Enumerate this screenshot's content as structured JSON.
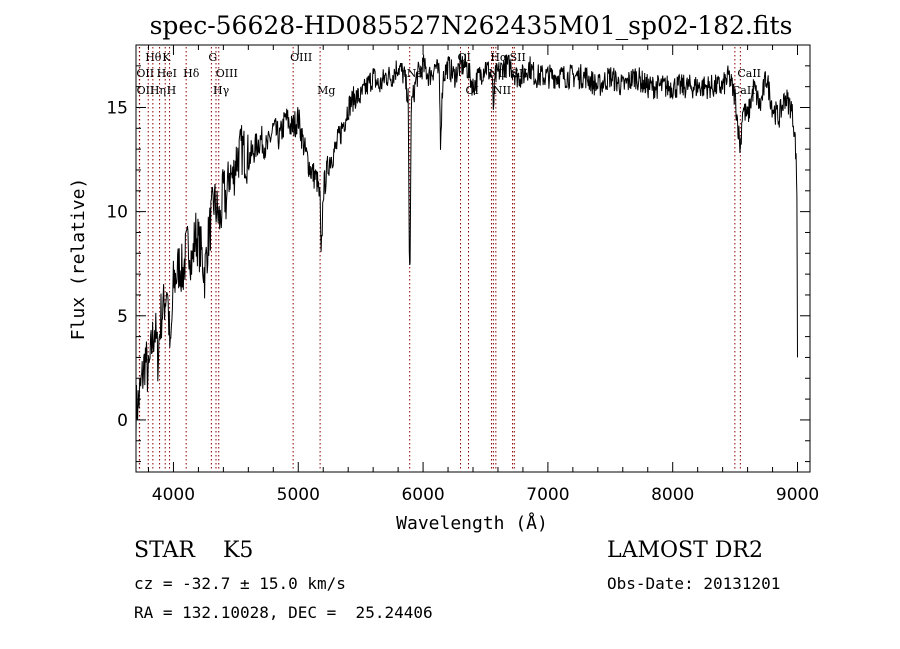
{
  "chart_data": {
    "type": "line",
    "title": "spec-56628-HD085527N262435M01_sp02-182.fits",
    "xlabel": "Wavelength (Å)",
    "ylabel": "Flux (relative)",
    "xlim": [
      3700,
      9100
    ],
    "ylim": [
      -2.5,
      18.0
    ],
    "x_ticks": [
      4000,
      5000,
      6000,
      7000,
      8000,
      9000
    ],
    "y_ticks": [
      0,
      5,
      10,
      15
    ],
    "grid": false,
    "series": [
      {
        "color": "#000000",
        "x": [
          3700,
          3725,
          3750,
          3775,
          3800,
          3825,
          3850,
          3875,
          3900,
          3925,
          3950,
          3975,
          4000,
          4025,
          4050,
          4075,
          4100,
          4125,
          4150,
          4175,
          4200,
          4225,
          4250,
          4275,
          4300,
          4325,
          4350,
          4375,
          4400,
          4425,
          4450,
          4475,
          4500,
          4550,
          4600,
          4650,
          4700,
          4750,
          4800,
          4850,
          4900,
          4950,
          5000,
          5050,
          5100,
          5150,
          5175,
          5183,
          5200,
          5250,
          5300,
          5350,
          5400,
          5450,
          5500,
          5550,
          5600,
          5650,
          5700,
          5750,
          5800,
          5850,
          5880,
          5890,
          5896,
          5905,
          5950,
          6000,
          6050,
          6100,
          6130,
          6140,
          6160,
          6200,
          6250,
          6300,
          6350,
          6400,
          6450,
          6500,
          6550,
          6563,
          6580,
          6650,
          6700,
          6750,
          6800,
          6850,
          6900,
          6950,
          7000,
          7100,
          7200,
          7300,
          7400,
          7500,
          7600,
          7700,
          7800,
          7900,
          8000,
          8100,
          8200,
          8300,
          8400,
          8450,
          8500,
          8542,
          8560,
          8600,
          8650,
          8700,
          8750,
          8800,
          8850,
          8900,
          8950,
          8975,
          8985,
          8995,
          9000
        ],
        "values": [
          0.5,
          1.0,
          2.0,
          3.0,
          2.0,
          3.5,
          4.5,
          3.0,
          5.0,
          5.5,
          6.5,
          3.0,
          6.5,
          7.0,
          7.5,
          7.0,
          8.0,
          8.5,
          7.5,
          9.0,
          8.5,
          8.0,
          7.0,
          8.5,
          9.5,
          10.5,
          10.0,
          9.5,
          11.0,
          10.5,
          12.0,
          11.5,
          12.5,
          13.0,
          12.5,
          13.0,
          13.5,
          13.0,
          14.0,
          13.5,
          14.5,
          14.0,
          14.5,
          13.0,
          12.0,
          11.5,
          10.5,
          7.5,
          11.0,
          12.5,
          13.0,
          14.0,
          15.0,
          15.5,
          15.5,
          16.0,
          16.5,
          16.0,
          16.5,
          16.5,
          17.0,
          16.5,
          15.5,
          8.0,
          7.5,
          15.0,
          16.5,
          17.0,
          16.5,
          17.0,
          16.5,
          13.5,
          16.5,
          17.0,
          16.5,
          17.0,
          17.0,
          16.0,
          16.5,
          17.0,
          16.5,
          15.0,
          16.5,
          17.0,
          17.0,
          16.5,
          16.5,
          17.0,
          16.5,
          16.5,
          16.5,
          16.5,
          16.5,
          16.5,
          16.0,
          16.5,
          16.0,
          16.5,
          16.0,
          16.0,
          16.0,
          16.0,
          16.0,
          16.0,
          16.0,
          16.5,
          15.5,
          13.0,
          15.0,
          14.5,
          16.0,
          15.0,
          16.5,
          15.0,
          14.5,
          15.5,
          15.0,
          14.0,
          13.0,
          11.0,
          3.0
        ]
      }
    ],
    "line_markers": [
      {
        "label": "Hθ",
        "wavelength": 3798,
        "row": 1
      },
      {
        "label": "K",
        "wavelength": 3934,
        "row": 1
      },
      {
        "label": "G",
        "wavelength": 4304,
        "row": 1
      },
      {
        "label": "OIII",
        "wavelength": 4959,
        "row": 1
      },
      {
        "label": "OI",
        "wavelength": 6300,
        "row": 1
      },
      {
        "label": "Hα",
        "wavelength": 6563,
        "row": 1
      },
      {
        "label": "SII",
        "wavelength": 6717,
        "row": 1
      },
      {
        "label": "OII",
        "wavelength": 3727,
        "row": 2
      },
      {
        "label": "HeI",
        "wavelength": 3889,
        "row": 2
      },
      {
        "label": "Hδ",
        "wavelength": 4102,
        "row": 2
      },
      {
        "label": "OIII",
        "wavelength": 4363,
        "row": 2
      },
      {
        "label": "Na",
        "wavelength": 5893,
        "row": 2
      },
      {
        "label": "NII",
        "wavelength": 6548,
        "row": 2
      },
      {
        "label": "SII",
        "wavelength": 6731,
        "row": 2
      },
      {
        "label": "CaII",
        "wavelength": 8542,
        "row": 2
      },
      {
        "label": "OII",
        "wavelength": 3729,
        "row": 3
      },
      {
        "label": "Hη",
        "wavelength": 3835,
        "row": 3
      },
      {
        "label": "H",
        "wavelength": 3969,
        "row": 3
      },
      {
        "label": "Hγ",
        "wavelength": 4341,
        "row": 3
      },
      {
        "label": "Mg",
        "wavelength": 5175,
        "row": 3
      },
      {
        "label": "OI",
        "wavelength": 6364,
        "row": 3
      },
      {
        "label": "NII",
        "wavelength": 6583,
        "row": 3
      },
      {
        "label": "CaII",
        "wavelength": 8498,
        "row": 3
      }
    ]
  },
  "info": {
    "object_class": "STAR    K5",
    "survey": "LAMOST DR2",
    "cz": "cz = -32.7 ± 15.0 km/s",
    "obs_date": "Obs-Date: 20131201",
    "radec": "RA = 132.10028, DEC =  25.24406"
  },
  "colors": {
    "spectrum": "#000000",
    "marker_lines": "#8b0000",
    "axes": "#000000"
  }
}
